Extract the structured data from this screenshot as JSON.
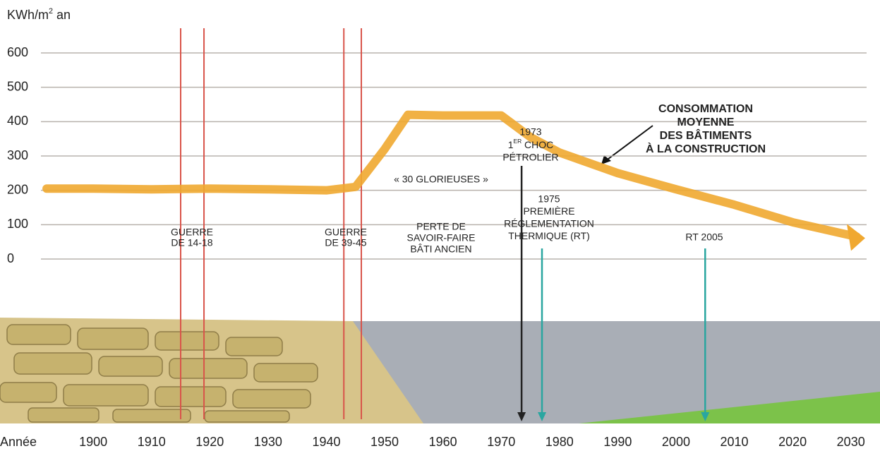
{
  "chart_data": {
    "type": "line",
    "y_label": [
      "KWh/m",
      "2",
      " an"
    ],
    "x_label": "Année",
    "x": [
      1892,
      1900,
      1910,
      1920,
      1930,
      1940,
      1945,
      1950,
      1954,
      1960,
      1970,
      1975,
      1980,
      1990,
      2000,
      2010,
      2020,
      2031
    ],
    "values": [
      205,
      205,
      203,
      205,
      203,
      200,
      210,
      320,
      420,
      418,
      418,
      355,
      310,
      250,
      203,
      158,
      107,
      65
    ],
    "color": "#f0a830",
    "xlim": [
      1884,
      2035
    ],
    "ylim": [
      0,
      600
    ],
    "xticks": [
      1900,
      1910,
      1920,
      1930,
      1940,
      1950,
      1960,
      1970,
      1980,
      1990,
      2000,
      2010,
      2020,
      2030
    ],
    "yticks": [
      0,
      100,
      200,
      300,
      400,
      500,
      600
    ],
    "grid": true,
    "events": [
      {
        "x": 1915,
        "color": "#d9544a"
      },
      {
        "x": 1919,
        "color": "#d9544a"
      },
      {
        "x": 1943,
        "color": "#d9544a"
      },
      {
        "x": 1946,
        "color": "#d9544a"
      },
      {
        "x": 1973.5,
        "color": "#222222"
      },
      {
        "x": 1977,
        "color": "#2aa6a0"
      },
      {
        "x": 2005,
        "color": "#2aa6a0"
      }
    ],
    "annotations": [
      {
        "lines": [
          "GUERRE",
          "DE 14-18"
        ]
      },
      {
        "lines": [
          "GUERRE",
          "DE 39-45"
        ]
      },
      {
        "lines": [
          "« 30 GLORIEUSES »"
        ]
      },
      {
        "lines": [
          "PERTE DE",
          "SAVOIR-FAIRE",
          "BÂTI ANCIEN"
        ]
      },
      {
        "lines": [
          "1973",
          [
            "1",
            "ER",
            " CHOC"
          ],
          "PÉTROLIER"
        ]
      },
      {
        "lines": [
          "1975",
          "PREMIÈRE",
          "RÉGLEMENTATION",
          "THERMIQUE (RT)"
        ]
      },
      {
        "lines": [
          "RT 2005"
        ]
      },
      {
        "lines": [
          "CONSOMMATION",
          "MOYENNE",
          "DES BÂTIMENTS",
          "À LA CONSTRUCTION"
        ]
      }
    ]
  }
}
